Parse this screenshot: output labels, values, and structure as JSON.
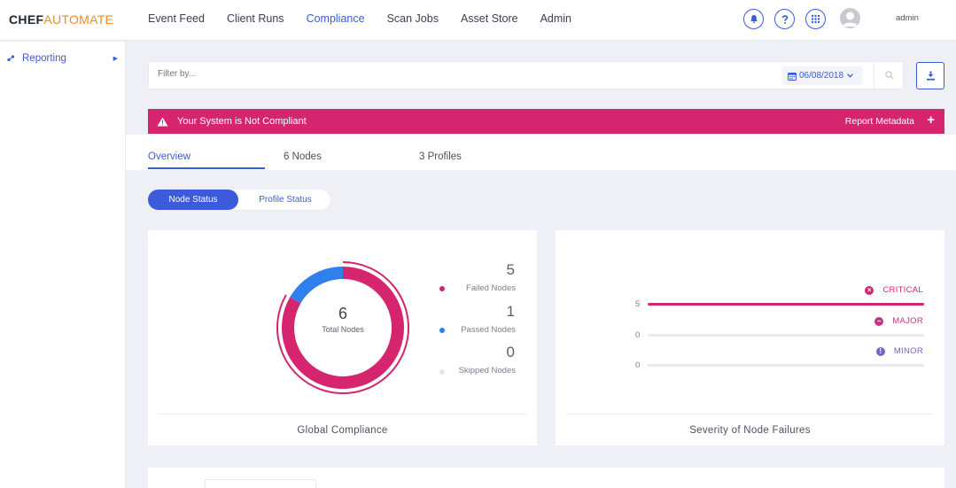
{
  "app": {
    "logo_part1": "CHEF",
    "logo_part2": "AUTOMATE"
  },
  "nav": {
    "links": [
      {
        "label": "Event Feed"
      },
      {
        "label": "Client Runs"
      },
      {
        "label": "Compliance",
        "active": true
      },
      {
        "label": "Scan Jobs"
      },
      {
        "label": "Asset Store"
      },
      {
        "label": "Admin"
      }
    ],
    "icons": [
      "bell-icon",
      "help-icon",
      "apps-grid-icon"
    ],
    "username": "admin"
  },
  "sidebar": {
    "items": [
      {
        "label": "Reporting",
        "icon": "reporting-icon"
      }
    ]
  },
  "filter": {
    "placeholder": "Filter by...",
    "date": "06/08/2018"
  },
  "alert": {
    "message": "Your System is Not Compliant",
    "action": "Report Metadata",
    "color": "#d6256f"
  },
  "tabs": [
    {
      "label": "Overview",
      "active": true
    },
    {
      "label": "6 Nodes"
    },
    {
      "label": "3 Profiles"
    }
  ],
  "status_toggle": {
    "selected": "Node Status",
    "other": "Profile Status"
  },
  "global_compliance": {
    "title": "Global Compliance",
    "total": "6",
    "total_label": "Total Nodes",
    "legend": [
      {
        "count": "5",
        "label": "Failed Nodes",
        "color": "#d6256f"
      },
      {
        "count": "1",
        "label": "Passed Nodes",
        "color": "#2f80ed"
      },
      {
        "count": "0",
        "label": "Skipped Nodes",
        "color": "#d8dbe2"
      }
    ]
  },
  "severity": {
    "title": "Severity of Node Failures",
    "rows": [
      {
        "label": "CRITICAL",
        "count": "5",
        "color": "#d6256f",
        "fraction": 1.0
      },
      {
        "label": "MAJOR",
        "count": "0",
        "color": "#c13584",
        "fraction": 0.0
      },
      {
        "label": "MINOR",
        "count": "0",
        "color": "#7b61c9",
        "fraction": 0.0
      }
    ]
  }
}
